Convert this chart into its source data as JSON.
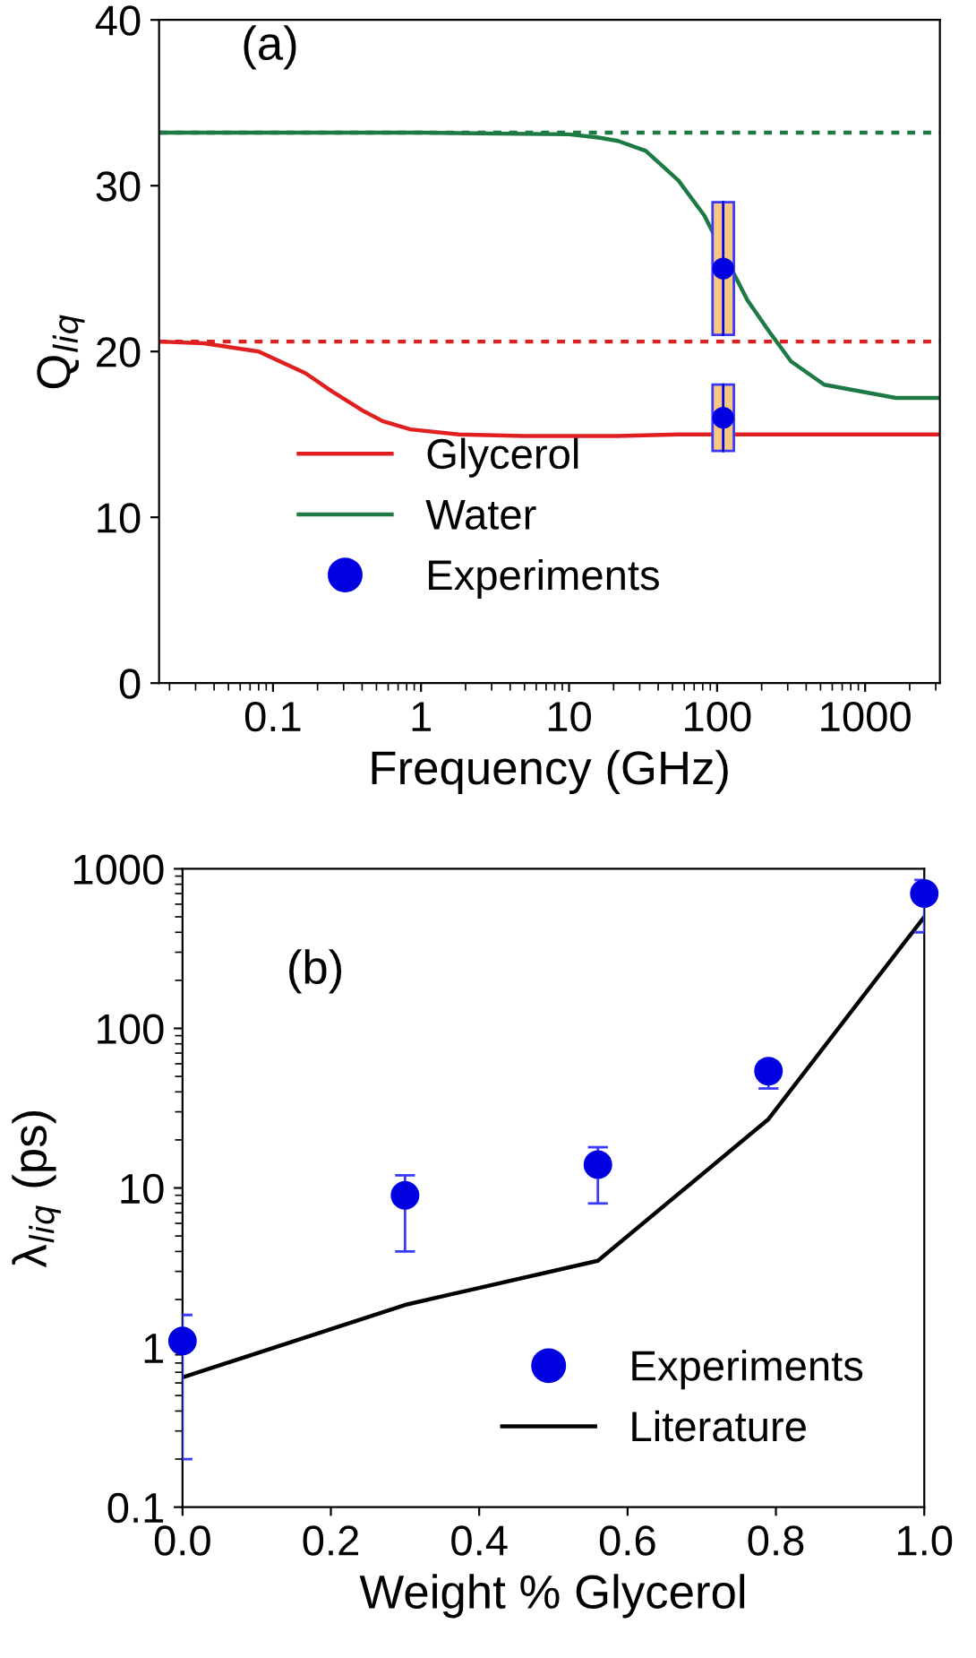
{
  "chart_data": [
    {
      "type": "line",
      "annotations": [
        {
          "text": "(a)"
        }
      ],
      "xlabel": "Frequency (GHz)",
      "ylabel": "Q$_{liq}$",
      "log": "x",
      "xlim": [
        0.017,
        3200
      ],
      "xticks": [
        0.1,
        1,
        10,
        100,
        1000
      ],
      "ylim": [
        0,
        40
      ],
      "yticks": [
        0,
        10,
        20,
        30,
        40
      ],
      "grid": false,
      "legend": "bottom left",
      "series": [
        {
          "name": "Glycerol",
          "color": "#e02020",
          "x": [
            0.017,
            0.034,
            0.08,
            0.165,
            0.25,
            0.41,
            0.55,
            0.85,
            1.8,
            5,
            21,
            55,
            3200
          ],
          "values": [
            20.6,
            20.5,
            20.0,
            18.7,
            17.6,
            16.4,
            15.8,
            15.3,
            15.0,
            14.9,
            14.9,
            15.0,
            15.0
          ]
        },
        {
          "name": "Water",
          "color": "#1e7a45",
          "x": [
            0.017,
            1,
            10,
            15.8,
            21.4,
            33,
            55,
            82,
            160,
            225,
            316,
            530,
            1615,
            3200
          ],
          "values": [
            33.2,
            33.2,
            33.1,
            32.9,
            32.7,
            32.1,
            30.3,
            28.2,
            23.1,
            21.2,
            19.4,
            18.0,
            17.2,
            17.2
          ]
        },
        {
          "type": "bar",
          "color": "#f9c77f",
          "x": [
            110,
            110
          ],
          "base": [
            21,
            14
          ],
          "values": [
            8,
            4
          ]
        },
        {
          "name": "Experiments",
          "type": "scatter",
          "marker": "circle",
          "color": "#0000e0",
          "x": [
            110,
            110
          ],
          "values": [
            25,
            16
          ],
          "errors": [
            [
              21,
              29
            ],
            [
              14,
              18
            ]
          ]
        }
      ],
      "ref_lines": [
        {
          "axis": "y",
          "value": 33.2,
          "color": "#1e7a45",
          "line_style": "dotted"
        },
        {
          "axis": "y",
          "value": 20.6,
          "color": "#e02020",
          "line_style": "dotted"
        }
      ]
    },
    {
      "type": "line",
      "annotations": [
        {
          "text": "(b)"
        }
      ],
      "xlabel": "Weight % Glycerol",
      "ylabel": "λ$_{liq}$ (ps)",
      "log": "y",
      "xlim": [
        0.0,
        1.0
      ],
      "xticks": [
        {
          "value": 0.0,
          "label": "0.0"
        },
        0.2,
        0.4,
        0.6,
        0.8,
        {
          "value": 1.0,
          "label": "1.0"
        }
      ],
      "ylim": [
        0.1,
        1000
      ],
      "yticks": [
        0.1,
        1,
        10,
        100,
        1000
      ],
      "grid": false,
      "legend": "bottom right",
      "series": [
        {
          "name": "Experiments",
          "type": "scatter",
          "marker": "circle",
          "color": "#0000e0",
          "x": [
            0.0,
            0.3,
            0.56,
            0.79,
            1.0
          ],
          "values": [
            1.1,
            9,
            14,
            54,
            700
          ],
          "errors": [
            [
              0.2,
              1.6
            ],
            [
              4,
              12
            ],
            [
              8,
              18
            ],
            [
              42,
              62
            ],
            [
              400,
              850
            ]
          ]
        },
        {
          "name": "Literature",
          "color": "#000000",
          "x": [
            0.0,
            0.3,
            0.56,
            0.79,
            1.0
          ],
          "values": [
            0.65,
            1.85,
            3.5,
            27,
            500
          ]
        }
      ]
    }
  ]
}
